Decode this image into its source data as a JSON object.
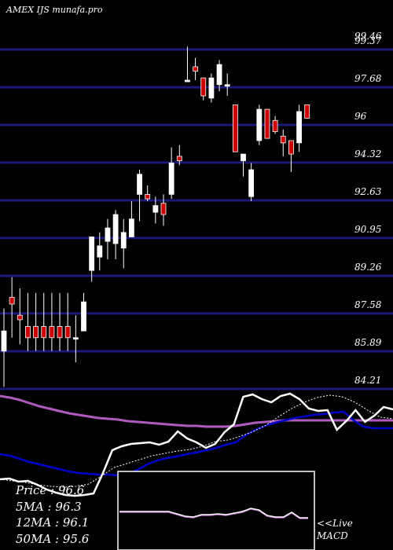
{
  "header": {
    "title": "AMEX IJS munafa.pro"
  },
  "chart_data": {
    "type": "candlestick",
    "price_axis": {
      "ticks": [
        "99.37",
        "97.68",
        "96",
        "94.32",
        "92.63",
        "90.95",
        "89.26",
        "87.58",
        "85.89",
        "84.21"
      ],
      "tick_values": [
        99.37,
        97.68,
        96,
        94.32,
        92.63,
        90.95,
        89.26,
        87.58,
        85.89,
        84.21
      ],
      "top_label": "99.46",
      "ylim": [
        84.21,
        100.5
      ]
    },
    "colors": {
      "background": "#000000",
      "gridline": "#1a1a7a",
      "up_candle": "#ffffff",
      "down_candle": "#cc0000",
      "ma_slow": "#b05bbf",
      "ma_fast": "#0000cc",
      "price_line": "#ffffff",
      "macd_line": "#b05bbf"
    },
    "candles": [
      {
        "o": 85.9,
        "h": 87.8,
        "l": 84.3,
        "c": 86.8
      },
      {
        "o": 88.3,
        "h": 89.2,
        "l": 86.5,
        "c": 88.0
      },
      {
        "o": 87.5,
        "h": 88.7,
        "l": 86.2,
        "c": 87.3
      },
      {
        "o": 87.0,
        "h": 88.5,
        "l": 85.9,
        "c": 86.5
      },
      {
        "o": 87.0,
        "h": 88.5,
        "l": 85.9,
        "c": 86.5
      },
      {
        "o": 87.0,
        "h": 88.5,
        "l": 85.9,
        "c": 86.5
      },
      {
        "o": 87.0,
        "h": 88.5,
        "l": 85.9,
        "c": 86.5
      },
      {
        "o": 87.0,
        "h": 88.5,
        "l": 85.9,
        "c": 86.5
      },
      {
        "o": 87.0,
        "h": 88.5,
        "l": 85.9,
        "c": 86.5
      },
      {
        "o": 86.5,
        "h": 87.5,
        "l": 85.4,
        "c": 86.5
      },
      {
        "o": 86.8,
        "h": 88.5,
        "l": 86.8,
        "c": 88.1
      },
      {
        "o": 89.5,
        "h": 91.0,
        "l": 89.0,
        "c": 91.0
      },
      {
        "o": 90.1,
        "h": 91.2,
        "l": 89.5,
        "c": 90.6
      },
      {
        "o": 90.8,
        "h": 91.8,
        "l": 90.0,
        "c": 91.4
      },
      {
        "o": 90.7,
        "h": 92.2,
        "l": 90.0,
        "c": 92.0
      },
      {
        "o": 90.5,
        "h": 91.8,
        "l": 89.6,
        "c": 91.2
      },
      {
        "o": 91.0,
        "h": 92.6,
        "l": 91.0,
        "c": 91.8
      },
      {
        "o": 92.9,
        "h": 94.0,
        "l": 91.7,
        "c": 93.8
      },
      {
        "o": 92.9,
        "h": 93.3,
        "l": 92.6,
        "c": 92.7
      },
      {
        "o": 92.1,
        "h": 92.8,
        "l": 91.6,
        "c": 92.4
      },
      {
        "o": 92.5,
        "h": 92.9,
        "l": 91.5,
        "c": 92.0
      },
      {
        "o": 92.9,
        "h": 95.0,
        "l": 92.7,
        "c": 94.3
      },
      {
        "o": 94.6,
        "h": 95.1,
        "l": 94.2,
        "c": 94.4
      },
      {
        "o": 98.0,
        "h": 99.5,
        "l": 98.0,
        "c": 98.0
      },
      {
        "o": 98.6,
        "h": 99.0,
        "l": 98.0,
        "c": 98.4
      },
      {
        "o": 98.1,
        "h": 98.1,
        "l": 97.1,
        "c": 97.3
      },
      {
        "o": 97.2,
        "h": 98.3,
        "l": 97.0,
        "c": 98.1
      },
      {
        "o": 97.8,
        "h": 98.9,
        "l": 97.5,
        "c": 98.7
      },
      {
        "o": 97.8,
        "h": 98.3,
        "l": 97.3,
        "c": 97.8
      },
      {
        "o": 96.9,
        "h": 96.9,
        "l": 94.8,
        "c": 94.8
      },
      {
        "o": 94.4,
        "h": 94.7,
        "l": 93.7,
        "c": 94.7
      },
      {
        "o": 92.8,
        "h": 94.3,
        "l": 92.6,
        "c": 94.0
      },
      {
        "o": 95.3,
        "h": 96.9,
        "l": 95.1,
        "c": 96.7
      },
      {
        "o": 96.7,
        "h": 96.7,
        "l": 95.4,
        "c": 95.4
      },
      {
        "o": 96.2,
        "h": 96.4,
        "l": 95.6,
        "c": 95.7
      },
      {
        "o": 95.5,
        "h": 95.8,
        "l": 94.6,
        "c": 95.2
      },
      {
        "o": 95.3,
        "h": 95.3,
        "l": 93.9,
        "c": 94.7
      },
      {
        "o": 95.2,
        "h": 96.9,
        "l": 94.8,
        "c": 96.6
      },
      {
        "o": 96.9,
        "h": 96.9,
        "l": 96.3,
        "c": 96.3
      }
    ],
    "overlay": {
      "ma_slow": [
        504,
        506,
        509,
        513,
        517,
        520,
        523,
        526,
        528,
        530,
        532,
        533,
        534,
        536,
        537,
        538,
        539,
        540,
        541,
        542,
        542,
        543,
        543,
        543,
        542,
        540,
        538,
        537,
        536,
        535,
        535,
        535,
        535,
        535,
        535,
        535,
        535,
        535,
        535,
        535,
        535
      ],
      "ma_fast": [
        578,
        580,
        584,
        588,
        591,
        594,
        597,
        600,
        602,
        603,
        604,
        604,
        605,
        603,
        598,
        591,
        586,
        583,
        581,
        578,
        576,
        573,
        570,
        566,
        563,
        554,
        547,
        542,
        538,
        535,
        532,
        530,
        528,
        527,
        525,
        524,
        535,
        543,
        545,
        545,
        545
      ],
      "price_line": [
        610,
        609,
        613,
        612,
        617,
        623,
        627,
        630,
        631,
        630,
        628,
        602,
        573,
        568,
        565,
        564,
        563,
        566,
        562,
        549,
        558,
        563,
        570,
        565,
        550,
        540,
        505,
        502,
        508,
        512,
        504,
        501,
        508,
        520,
        523,
        522,
        547,
        536,
        522,
        537,
        529,
        518,
        521
      ],
      "price_line_dotted": [
        610,
        612,
        614,
        617,
        619,
        620,
        619,
        616,
        606,
        595,
        590,
        585,
        580,
        577,
        574,
        572,
        568,
        562,
        560,
        555,
        549,
        541,
        530,
        520,
        512,
        506,
        503,
        505,
        512,
        522,
        531,
        533
      ],
      "ylim_px": [
        495,
        640
      ]
    },
    "macd": {
      "line": [
        652,
        652,
        652,
        652,
        652,
        652,
        652,
        655,
        658,
        659,
        656,
        656,
        655,
        656,
        654,
        652,
        648,
        650,
        657,
        659,
        659,
        653,
        660,
        660
      ],
      "label": "<<Live\nMACD"
    },
    "moving_averages": [
      {
        "label": "Price  :",
        "value": "96.6"
      },
      {
        "label": "5MA : ",
        "value": "96.3"
      },
      {
        "label": "12MA : ",
        "value": "96.1"
      },
      {
        "label": "50MA : ",
        "value": "95.6"
      }
    ]
  }
}
